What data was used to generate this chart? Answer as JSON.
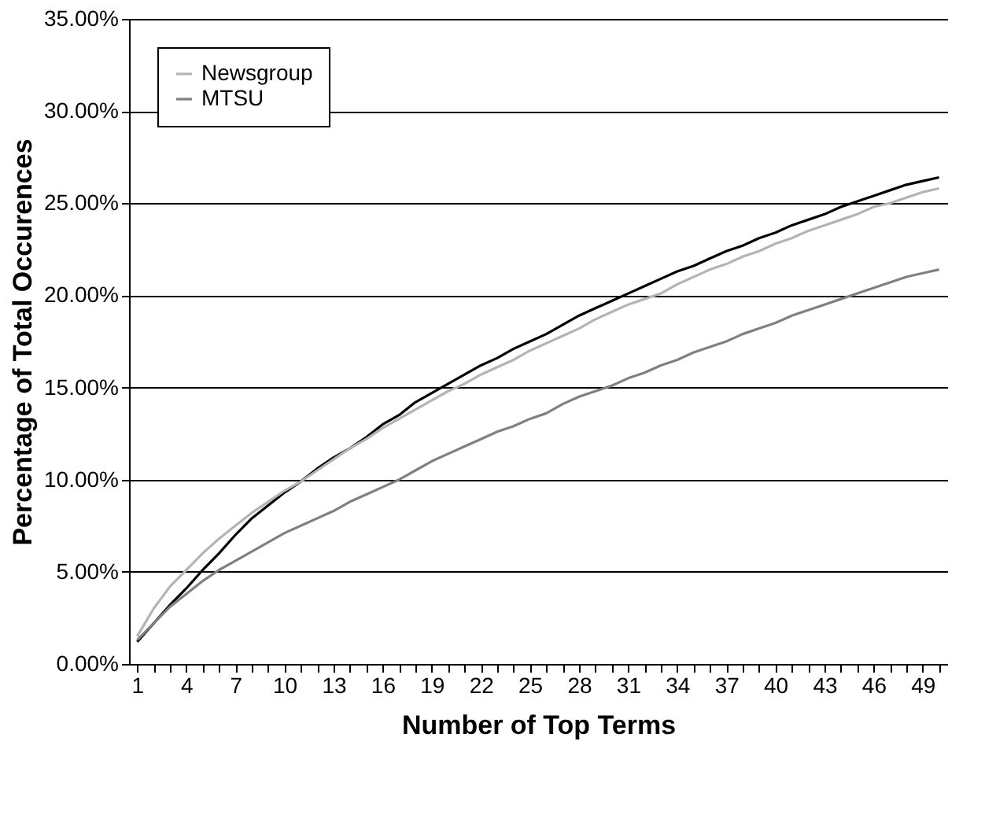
{
  "chart_data": {
    "type": "line",
    "xlabel": "Number of Top Terms",
    "ylabel": "Percentage of Total Occurences",
    "categories": [
      "1",
      null,
      null,
      "4",
      null,
      null,
      "7",
      null,
      null,
      "10",
      null,
      null,
      "13",
      null,
      null,
      "16",
      null,
      null,
      "19",
      null,
      null,
      "22",
      null,
      null,
      "25",
      null,
      null,
      "28",
      null,
      null,
      "31",
      null,
      null,
      "34",
      null,
      null,
      "37",
      null,
      null,
      "40",
      null,
      null,
      "43",
      null,
      null,
      "46",
      null,
      null,
      "49",
      null
    ],
    "series": [
      {
        "color": "#000000",
        "values": [
          1.2,
          2.2,
          3.2,
          4.1,
          5.1,
          6.0,
          7.0,
          7.9,
          8.6,
          9.3,
          9.9,
          10.6,
          11.2,
          11.7,
          12.3,
          13.0,
          13.5,
          14.2,
          14.7,
          15.2,
          15.7,
          16.2,
          16.6,
          17.1,
          17.5,
          17.9,
          18.4,
          18.9,
          19.3,
          19.7,
          20.1,
          20.5,
          20.9,
          21.3,
          21.6,
          22.0,
          22.4,
          22.7,
          23.1,
          23.4,
          23.8,
          24.1,
          24.4,
          24.8,
          25.1,
          25.4,
          25.7,
          26.0,
          26.2,
          26.4
        ]
      },
      {
        "name": "Newsgroup",
        "color": "#b4b4b4",
        "values": [
          1.5,
          3.0,
          4.2,
          5.1,
          6.0,
          6.8,
          7.5,
          8.2,
          8.8,
          9.4,
          9.9,
          10.5,
          11.1,
          11.7,
          12.2,
          12.8,
          13.3,
          13.8,
          14.3,
          14.8,
          15.2,
          15.7,
          16.1,
          16.5,
          17.0,
          17.4,
          17.8,
          18.2,
          18.7,
          19.1,
          19.5,
          19.8,
          20.1,
          20.6,
          21.0,
          21.4,
          21.7,
          22.1,
          22.4,
          22.8,
          23.1,
          23.5,
          23.8,
          24.1,
          24.4,
          24.8,
          25.0,
          25.3,
          25.6,
          25.8
        ]
      },
      {
        "name": "MTSU",
        "color": "#808080",
        "values": [
          1.3,
          2.2,
          3.1,
          3.8,
          4.5,
          5.1,
          5.6,
          6.1,
          6.6,
          7.1,
          7.5,
          7.9,
          8.3,
          8.8,
          9.2,
          9.6,
          10.0,
          10.5,
          11.0,
          11.4,
          11.8,
          12.2,
          12.6,
          12.9,
          13.3,
          13.6,
          14.1,
          14.5,
          14.8,
          15.1,
          15.5,
          15.8,
          16.2,
          16.5,
          16.9,
          17.2,
          17.5,
          17.9,
          18.2,
          18.5,
          18.9,
          19.2,
          19.5,
          19.8,
          20.1,
          20.4,
          20.7,
          21.0,
          21.2,
          21.4
        ]
      }
    ],
    "ylim": [
      0,
      35
    ],
    "yticks": [
      {
        "value": 0,
        "label": "0.00%"
      },
      {
        "value": 5,
        "label": "5.00%"
      },
      {
        "value": 10,
        "label": "10.00%"
      },
      {
        "value": 15,
        "label": "15.00%"
      },
      {
        "value": 20,
        "label": "20.00%"
      },
      {
        "value": 25,
        "label": "25.00%"
      },
      {
        "value": 30,
        "label": "30.00%"
      },
      {
        "value": 35,
        "label": "35.00%"
      }
    ],
    "grid": "y",
    "legend": "top left",
    "marker": "none",
    "line_style": "solid"
  }
}
